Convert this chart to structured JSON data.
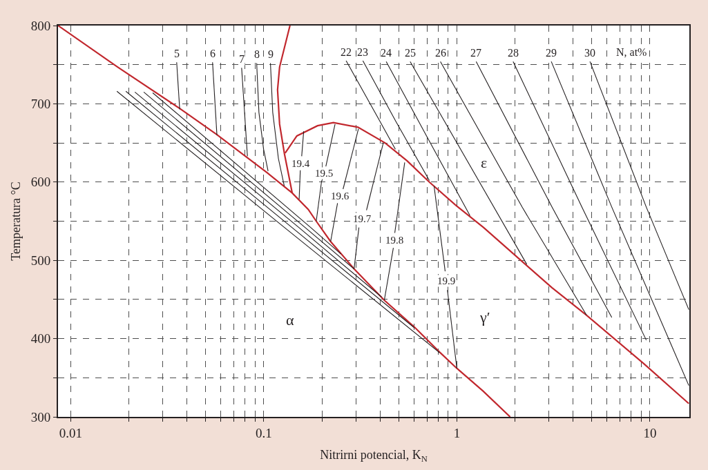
{
  "chart_data": {
    "type": "line",
    "log": "x",
    "grid": true,
    "legend": false,
    "xlabel": "Nitrirni potencial, K$_{N}$",
    "ylabel": "Temperatura °C",
    "xlim": [
      0.0086,
      16
    ],
    "ylim": [
      300,
      800
    ],
    "xticks": [
      0.01,
      {
        "value": 0.02,
        "label": null
      },
      {
        "value": 0.03,
        "label": null
      },
      {
        "value": 0.04,
        "label": null
      },
      {
        "value": 0.05,
        "label": null
      },
      {
        "value": 0.06,
        "label": null
      },
      {
        "value": 0.07,
        "label": null
      },
      {
        "value": 0.08,
        "label": null
      },
      {
        "value": 0.09,
        "label": null
      },
      0.1,
      {
        "value": 0.2,
        "label": null
      },
      {
        "value": 0.3,
        "label": null
      },
      {
        "value": 0.4,
        "label": null
      },
      {
        "value": 0.5,
        "label": null
      },
      {
        "value": 0.6,
        "label": null
      },
      {
        "value": 0.7,
        "label": null
      },
      {
        "value": 0.8,
        "label": null
      },
      {
        "value": 0.9,
        "label": null
      },
      1,
      {
        "value": 2,
        "label": null
      },
      {
        "value": 3,
        "label": null
      },
      {
        "value": 4,
        "label": null
      },
      {
        "value": 5,
        "label": null
      },
      {
        "value": 6,
        "label": null
      },
      {
        "value": 7,
        "label": null
      },
      {
        "value": 8,
        "label": null
      },
      {
        "value": 9,
        "label": null
      },
      10
    ],
    "yticks": [
      300,
      {
        "value": 350,
        "label": null
      },
      400,
      {
        "value": 450,
        "label": null
      },
      500,
      {
        "value": 550,
        "label": null
      },
      600,
      {
        "value": 650,
        "label": null
      },
      700,
      {
        "value": 750,
        "label": null
      },
      800
    ],
    "series": [
      {
        "color": "#c1272d",
        "x": [
          0.0086,
          0.0175,
          0.0367,
          0.0569,
          0.104,
          0.1404,
          0.17,
          0.187,
          0.222,
          0.294,
          0.421,
          0.601,
          0.812,
          1.0,
          1.367,
          1.888
        ],
        "values": [
          800,
          747,
          694,
          661,
          612,
          586,
          565,
          550,
          524,
          489,
          449,
          415,
          383,
          362,
          333,
          300
        ]
      },
      {
        "color": "#c1272d",
        "x": [
          0.1367,
          0.1208,
          0.1179,
          0.1208,
          0.128,
          0.1404
        ],
        "values": [
          800,
          747,
          718,
          674,
          636,
          586
        ]
      },
      {
        "color": "#c1272d",
        "x": [
          0.129,
          0.1484,
          0.19,
          0.2295,
          0.3076,
          0.425,
          0.553,
          0.72,
          0.992,
          1.375,
          2.012,
          3.11,
          4.69,
          9.29,
          15.9
        ],
        "values": [
          637,
          659,
          672,
          676,
          670,
          650,
          627,
          600,
          570,
          542,
          506,
          465,
          430,
          368,
          317
        ]
      },
      {
        "color": "#231f20",
        "x": [
          0.01735,
          0.128,
          0.814
        ],
        "values": [
          716,
          542,
          382
        ]
      },
      {
        "color": "#231f20",
        "x": [
          0.0193,
          0.14,
          0.601
        ],
        "values": [
          716,
          542,
          414
        ]
      },
      {
        "color": "#231f20",
        "x": [
          0.0215,
          0.152,
          0.408
        ],
        "values": [
          715,
          542,
          453
        ]
      },
      {
        "color": "#231f20",
        "x": [
          0.0239,
          0.1637,
          0.2936
        ],
        "values": [
          715,
          542,
          489
        ]
      },
      {
        "color": "#231f20",
        "x": [
          0.0266,
          0.175,
          0.2512
        ],
        "values": [
          714,
          542,
          508
        ]
      },
      {
        "name": "5",
        "color": "#231f20",
        "x": [
          0.0354,
          0.0367
        ],
        "values": [
          753,
          693
        ]
      },
      {
        "name": "6",
        "color": "#231f20",
        "x": [
          0.0543,
          0.0572
        ],
        "values": [
          753,
          660
        ]
      },
      {
        "name": "7",
        "color": "#231f20",
        "x": [
          0.0768,
          0.0823
        ],
        "values": [
          746,
          633
        ]
      },
      {
        "name": "8",
        "color": "#231f20",
        "x": [
          0.0919,
          0.0944,
          0.0998,
          0.1053
        ],
        "values": [
          752,
          689,
          642,
          614
        ]
      },
      {
        "name": "9",
        "color": "#231f20",
        "x": [
          0.1083,
          0.1113,
          0.1191,
          0.1277
        ],
        "values": [
          752,
          689,
          630,
          595
        ]
      },
      {
        "name": "19.4",
        "color": "#231f20",
        "x": [
          0.161,
          0.1572,
          0.1559,
          0.1546,
          0.1525
        ],
        "values": [
          665,
          633,
          null,
          615,
          578
        ]
      },
      {
        "name": "19.5",
        "color": "#231f20",
        "x": [
          0.234,
          0.2097,
          0.2045,
          0.1995,
          0.187
        ],
        "values": [
          674,
          620,
          null,
          602,
          550
        ]
      },
      {
        "name": "19.6",
        "color": "#231f20",
        "x": [
          0.3093,
          0.2575,
          0.249,
          0.241,
          0.222
        ],
        "values": [
          668,
          591,
          null,
          573,
          524
        ]
      },
      {
        "name": "19.7",
        "color": "#231f20",
        "x": [
          0.416,
          0.3404,
          0.325,
          0.311,
          0.2936
        ],
        "values": [
          650,
          564,
          null,
          542,
          489
        ]
      },
      {
        "name": "19.8",
        "color": "#231f20",
        "x": [
          0.537,
          0.477,
          0.473,
          0.469,
          0.421
        ],
        "values": [
          625,
          535,
          null,
          516,
          449
        ]
      },
      {
        "name": "19.9",
        "color": "#231f20",
        "x": [
          0.762,
          0.87,
          0.882,
          0.8935,
          1.0
        ],
        "values": [
          595,
          486,
          null,
          462,
          362
        ]
      },
      {
        "name": "22",
        "color": "#231f20",
        "x": [
          0.267,
          0.3888,
          0.4805
        ],
        "values": [
          755,
          683,
          642
        ]
      },
      {
        "name": "23",
        "color": "#231f20",
        "x": [
          0.326,
          0.4844,
          0.7203
        ],
        "values": [
          755,
          677,
          602
        ]
      },
      {
        "name": "24",
        "color": "#231f20",
        "x": [
          0.4307,
          0.6998,
          1.17
        ],
        "values": [
          754,
          658,
          557
        ]
      },
      {
        "name": "25",
        "color": "#231f20",
        "x": [
          0.573,
          2.301
        ],
        "values": [
          754,
          495
        ]
      },
      {
        "name": "26",
        "color": "#231f20",
        "x": [
          0.822,
          2.179,
          4.692
        ],
        "values": [
          754,
          568,
          430
        ]
      },
      {
        "name": "27",
        "color": "#231f20",
        "x": [
          1.259,
          3.111,
          6.345
        ],
        "values": [
          754,
          568,
          427
        ]
      },
      {
        "name": "28",
        "color": "#231f20",
        "x": [
          1.956,
          4.442,
          9.575
        ],
        "values": [
          754,
          568,
          398
        ]
      },
      {
        "name": "29",
        "color": "#231f20",
        "x": [
          3.083,
          6.345,
          15.9
        ],
        "values": [
          754,
          568,
          340
        ]
      },
      {
        "name": "30",
        "color": "#231f20",
        "x": [
          4.89,
          9.575,
          15.9
        ],
        "values": [
          754,
          568,
          437
        ]
      }
    ],
    "annotations": [
      "N, at%",
      "α",
      "γ′",
      "ε"
    ]
  }
}
